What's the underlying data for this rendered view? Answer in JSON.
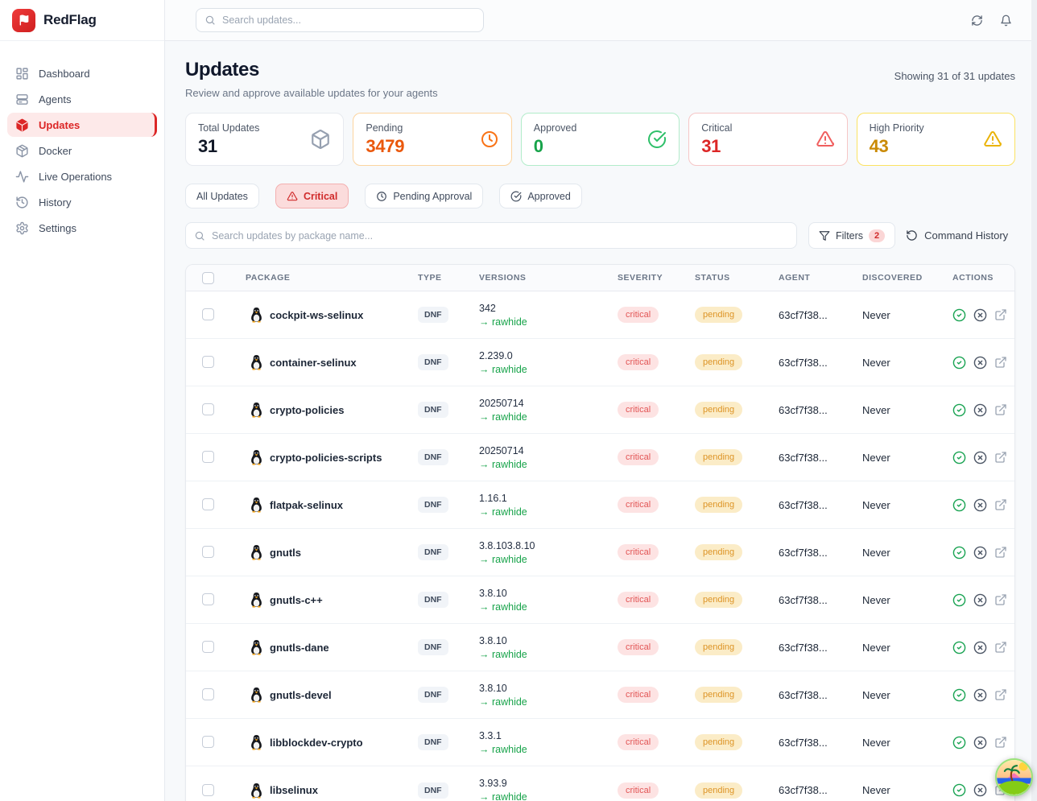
{
  "brand": {
    "name": "RedFlag"
  },
  "topbar": {
    "search_placeholder": "Search updates...",
    "icons": [
      "refresh",
      "bell"
    ]
  },
  "sidebar": {
    "items": [
      {
        "label": "Dashboard",
        "icon": "dashboard",
        "active": false
      },
      {
        "label": "Agents",
        "icon": "agents",
        "active": false
      },
      {
        "label": "Updates",
        "icon": "package",
        "active": true
      },
      {
        "label": "Docker",
        "icon": "docker",
        "active": false
      },
      {
        "label": "Live Operations",
        "icon": "activity",
        "active": false
      },
      {
        "label": "History",
        "icon": "history",
        "active": false
      },
      {
        "label": "Settings",
        "icon": "settings",
        "active": false
      }
    ]
  },
  "header": {
    "title": "Updates",
    "subtitle": "Review and approve available updates for your agents",
    "showing": "Showing 31 of 31 updates"
  },
  "cards": [
    {
      "label": "Total Updates",
      "value": "31",
      "icon": "package",
      "icon_color": "#96a0b0",
      "value_color": "#111827",
      "border": "#e7eaef"
    },
    {
      "label": "Pending",
      "value": "3479",
      "icon": "clock",
      "icon_color": "#f97316",
      "value_color": "#ea580c",
      "border": "#fcd49f"
    },
    {
      "label": "Approved",
      "value": "0",
      "icon": "check-circle",
      "icon_color": "#2fc06a",
      "value_color": "#17a34a",
      "border": "#b2ecca"
    },
    {
      "label": "Critical",
      "value": "31",
      "icon": "alert-triangle",
      "icon_color": "#f05f5f",
      "value_color": "#dc2626",
      "border": "#f6c6c6"
    },
    {
      "label": "High Priority",
      "value": "43",
      "icon": "alert-triangle",
      "icon_color": "#eab308",
      "value_color": "#ca8a04",
      "border": "#fbe262"
    }
  ],
  "filter_tabs": [
    {
      "label": "All Updates",
      "icon": null,
      "active": false
    },
    {
      "label": "Critical",
      "icon": "alert-triangle",
      "active": true
    },
    {
      "label": "Pending Approval",
      "icon": "clock",
      "active": false
    },
    {
      "label": "Approved",
      "icon": "check-circle",
      "active": false
    }
  ],
  "toolbar": {
    "search_placeholder": "Search updates by package name...",
    "filters_label": "Filters",
    "filters_badge": "2",
    "command_history_label": "Command History"
  },
  "badge_colors": {
    "critical": {
      "bg": "#fde3e3",
      "text": "#e25555"
    },
    "pending": {
      "bg": "#fbecc7",
      "text": "#dd9426"
    }
  },
  "table": {
    "arrow": "→",
    "columns": [
      "PACKAGE",
      "TYPE",
      "VERSIONS",
      "SEVERITY",
      "STATUS",
      "AGENT",
      "DISCOVERED",
      "ACTIONS"
    ],
    "rows": [
      {
        "package": "cockpit-ws-selinux",
        "type": "DNF",
        "version_from": "342",
        "version_to": "rawhide",
        "severity": "critical",
        "status": "pending",
        "agent": "63cf7f38...",
        "discovered": "Never"
      },
      {
        "package": "container-selinux",
        "type": "DNF",
        "version_from": "2.239.0",
        "version_to": "rawhide",
        "severity": "critical",
        "status": "pending",
        "agent": "63cf7f38...",
        "discovered": "Never"
      },
      {
        "package": "crypto-policies",
        "type": "DNF",
        "version_from": "20250714",
        "version_to": "rawhide",
        "severity": "critical",
        "status": "pending",
        "agent": "63cf7f38...",
        "discovered": "Never"
      },
      {
        "package": "crypto-policies-scripts",
        "type": "DNF",
        "version_from": "20250714",
        "version_to": "rawhide",
        "severity": "critical",
        "status": "pending",
        "agent": "63cf7f38...",
        "discovered": "Never"
      },
      {
        "package": "flatpak-selinux",
        "type": "DNF",
        "version_from": "1.16.1",
        "version_to": "rawhide",
        "severity": "critical",
        "status": "pending",
        "agent": "63cf7f38...",
        "discovered": "Never"
      },
      {
        "package": "gnutls",
        "type": "DNF",
        "version_from": "3.8.103.8.10",
        "version_to": "rawhide",
        "severity": "critical",
        "status": "pending",
        "agent": "63cf7f38...",
        "discovered": "Never"
      },
      {
        "package": "gnutls-c++",
        "type": "DNF",
        "version_from": "3.8.10",
        "version_to": "rawhide",
        "severity": "critical",
        "status": "pending",
        "agent": "63cf7f38...",
        "discovered": "Never"
      },
      {
        "package": "gnutls-dane",
        "type": "DNF",
        "version_from": "3.8.10",
        "version_to": "rawhide",
        "severity": "critical",
        "status": "pending",
        "agent": "63cf7f38...",
        "discovered": "Never"
      },
      {
        "package": "gnutls-devel",
        "type": "DNF",
        "version_from": "3.8.10",
        "version_to": "rawhide",
        "severity": "critical",
        "status": "pending",
        "agent": "63cf7f38...",
        "discovered": "Never"
      },
      {
        "package": "libblockdev-crypto",
        "type": "DNF",
        "version_from": "3.3.1",
        "version_to": "rawhide",
        "severity": "critical",
        "status": "pending",
        "agent": "63cf7f38...",
        "discovered": "Never"
      },
      {
        "package": "libselinux",
        "type": "DNF",
        "version_from": "3.93.9",
        "version_to": "rawhide",
        "severity": "critical",
        "status": "pending",
        "agent": "63cf7f38...",
        "discovered": "Never"
      }
    ]
  },
  "row_action_icons": [
    "circle-check",
    "circle-x",
    "external-link"
  ],
  "floating_widget": {
    "icon": "tropical-island"
  }
}
